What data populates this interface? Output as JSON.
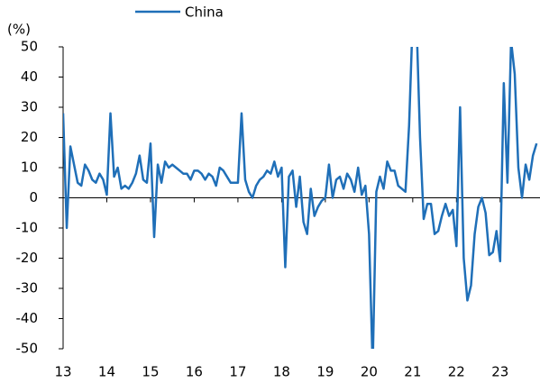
{
  "chart_data": {
    "type": "line",
    "y_label": "(%)",
    "categories": [
      "13",
      null,
      null,
      null,
      null,
      null,
      null,
      null,
      null,
      null,
      null,
      null,
      "14",
      null,
      null,
      null,
      null,
      null,
      null,
      null,
      null,
      null,
      null,
      null,
      "15",
      null,
      null,
      null,
      null,
      null,
      null,
      null,
      null,
      null,
      null,
      null,
      "16",
      null,
      null,
      null,
      null,
      null,
      null,
      null,
      null,
      null,
      null,
      null,
      "17",
      null,
      null,
      null,
      null,
      null,
      null,
      null,
      null,
      null,
      null,
      null,
      "18",
      null,
      null,
      null,
      null,
      null,
      null,
      null,
      null,
      null,
      null,
      null,
      "19",
      null,
      null,
      null,
      null,
      null,
      null,
      null,
      null,
      null,
      null,
      null,
      "20",
      null,
      null,
      null,
      null,
      null,
      null,
      null,
      null,
      null,
      null,
      null,
      "21",
      null,
      null,
      null,
      null,
      null,
      null,
      null,
      null,
      null,
      null,
      null,
      "22",
      null,
      null,
      null,
      null,
      null,
      null,
      null,
      null,
      null,
      null,
      null,
      "23",
      null,
      null,
      null,
      null,
      null,
      null,
      null,
      null,
      null,
      null
    ],
    "series": [
      {
        "name": "China",
        "color": "#1f6fb8",
        "values": [
          28,
          -10,
          17,
          11,
          5,
          4,
          11,
          9,
          6,
          5,
          8,
          6,
          1,
          28,
          7,
          10,
          3,
          4,
          3,
          5,
          8,
          14,
          6,
          5,
          18,
          -13,
          11,
          5,
          12,
          10,
          11,
          10,
          9,
          8,
          8,
          6,
          9,
          9,
          8,
          6,
          8,
          7,
          4,
          10,
          9,
          7,
          5,
          5,
          5,
          28,
          6,
          2,
          0,
          4,
          6,
          7,
          9,
          8,
          12,
          7,
          10,
          -23,
          7,
          9,
          -3,
          7,
          -8,
          -12,
          3,
          -6,
          -3,
          -1,
          0,
          11,
          0,
          6,
          7,
          3,
          8,
          6,
          2,
          10,
          1,
          4,
          -12,
          -56,
          2,
          7,
          3,
          12,
          9,
          9,
          4,
          3,
          2,
          24,
          60,
          60,
          20,
          -7,
          -2,
          -2,
          -12,
          -11,
          -6,
          -2,
          -6,
          -4,
          -16,
          30,
          -20,
          -34,
          -29,
          -12,
          -3,
          0,
          -5,
          -19,
          -18,
          -11,
          -21,
          38,
          5,
          52,
          41,
          10,
          0,
          11,
          6,
          14,
          18
        ]
      }
    ],
    "ylim": [
      -50,
      50
    ],
    "yticks": [
      -50,
      -40,
      -30,
      -20,
      -10,
      0,
      10,
      20,
      30,
      40,
      50
    ],
    "legend": "top",
    "grid": false
  }
}
